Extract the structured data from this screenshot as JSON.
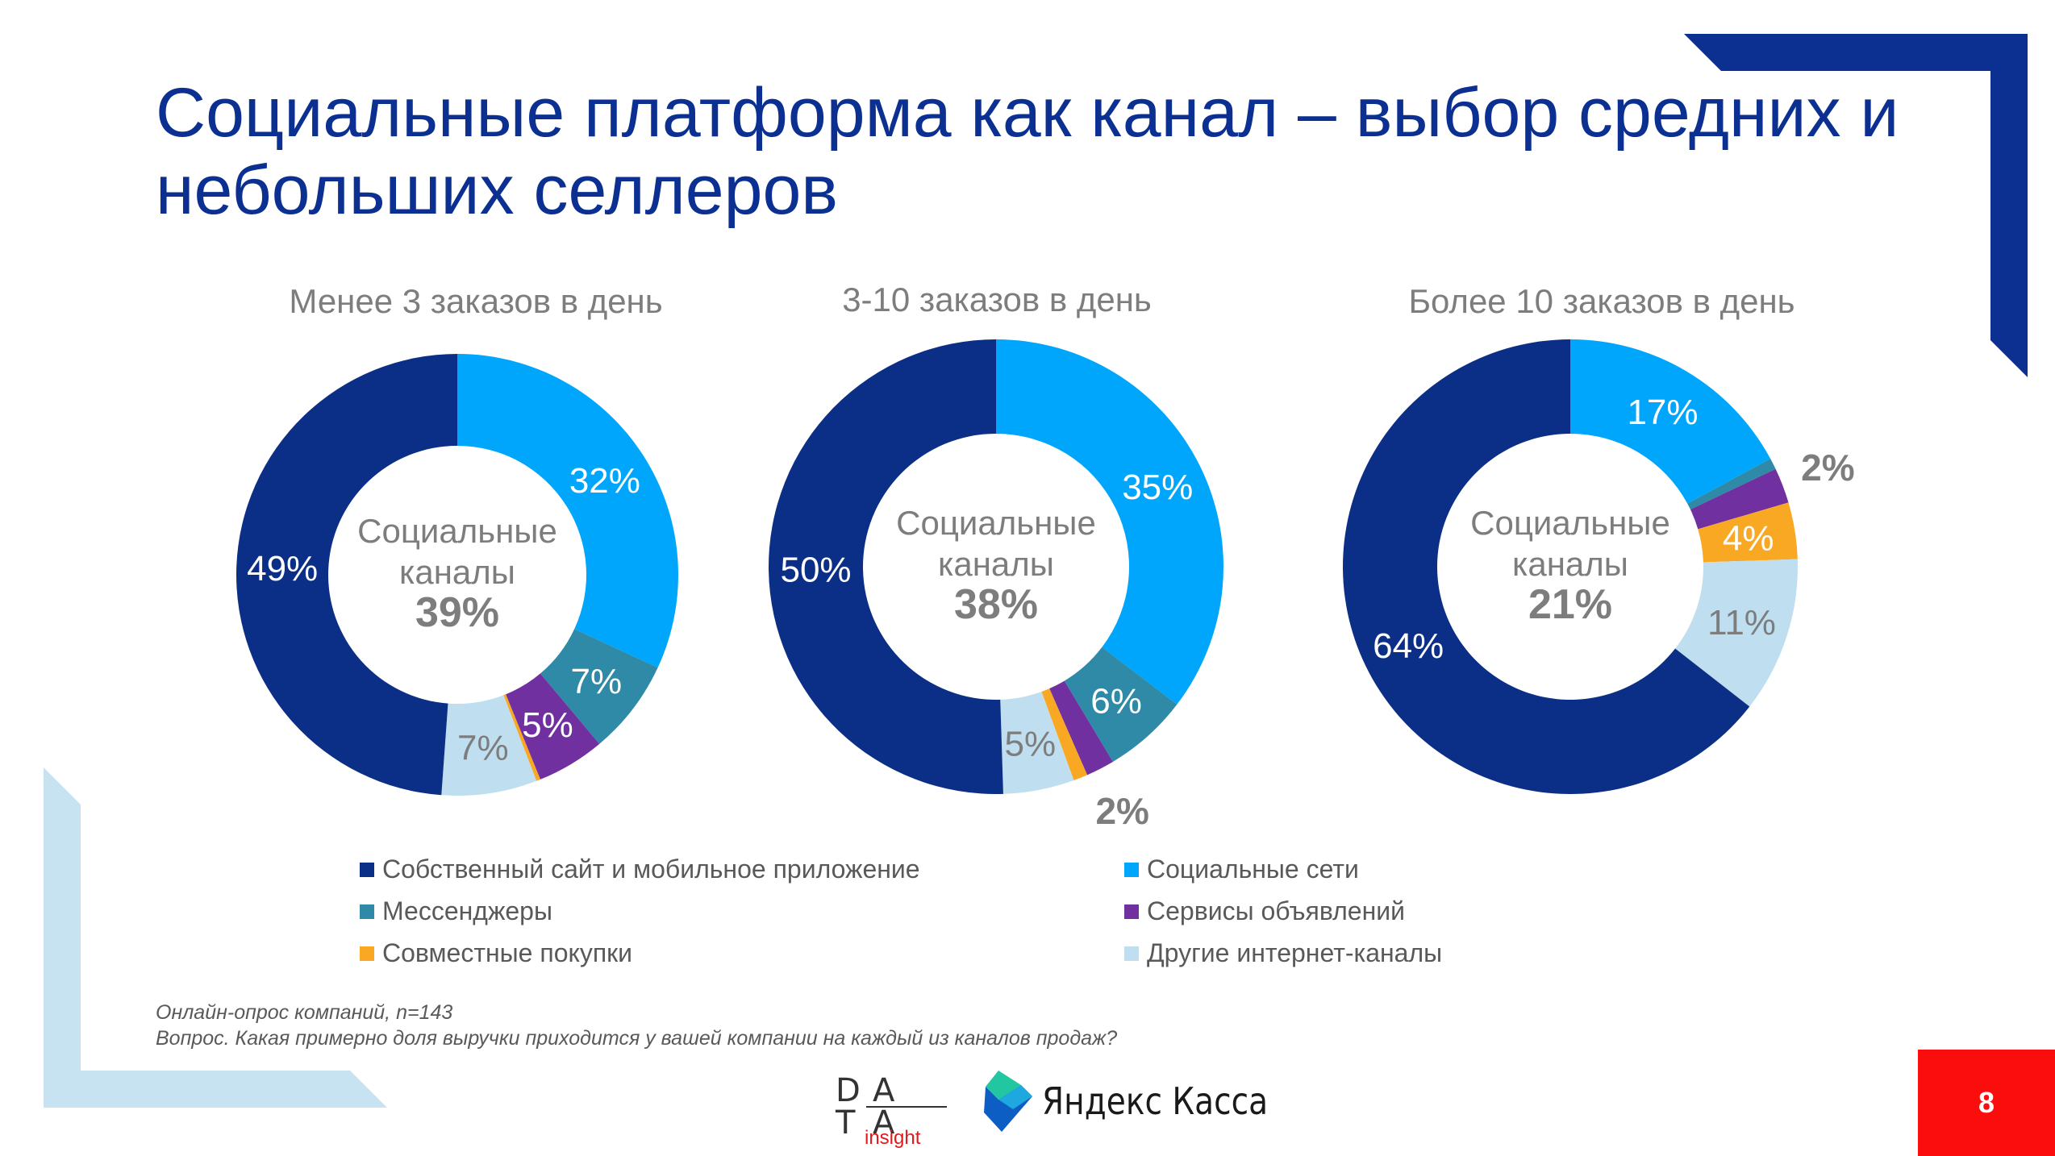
{
  "title": "Социальные платформа как канал – выбор средних и небольших селлеров",
  "colors": {
    "own_site": "#0b2f87",
    "social_networks": "#00a6fb",
    "messengers": "#2e8aa6",
    "classifieds": "#7030a0",
    "joint_purchases": "#f9a824",
    "other": "#bfdff0",
    "title": "#0b3091",
    "accent_red": "#fb0d0d"
  },
  "legend": [
    {
      "label": "Собственный сайт и мобильное приложение",
      "color": "#0b2f87"
    },
    {
      "label": "Социальные сети",
      "color": "#00a6fb"
    },
    {
      "label": "Мессенджеры",
      "color": "#2e8aa6"
    },
    {
      "label": "Сервисы объявлений",
      "color": "#7030a0"
    },
    {
      "label": "Совместные покупки",
      "color": "#f9a824"
    },
    {
      "label": "Другие интернет-каналы",
      "color": "#bfdff0"
    }
  ],
  "chart_data": [
    {
      "type": "pie",
      "title": "Менее 3 заказов в день",
      "center_label": "Социальные каналы",
      "center_value": "39%",
      "slices": [
        {
          "category": "Социальные сети",
          "value": 32,
          "label": "32%"
        },
        {
          "category": "Мессенджеры",
          "value": 7,
          "label": "7%"
        },
        {
          "category": "Сервисы объявлений",
          "value": 5,
          "label": "5%"
        },
        {
          "category": "Совместные покупки",
          "value": 0.3,
          "label": ""
        },
        {
          "category": "Другие интернет-каналы",
          "value": 7,
          "label": "7%"
        },
        {
          "category": "Собственный сайт и мобильное приложение",
          "value": 49,
          "label": "49%"
        }
      ]
    },
    {
      "type": "pie",
      "title": "3-10 заказов в день",
      "center_label": "Социальные каналы",
      "center_value": "38%",
      "slices": [
        {
          "category": "Социальные сети",
          "value": 35,
          "label": "35%"
        },
        {
          "category": "Мессенджеры",
          "value": 6,
          "label": "6%"
        },
        {
          "category": "Сервисы объявлений",
          "value": 2,
          "label": "2%"
        },
        {
          "category": "Совместные покупки",
          "value": 1,
          "label": ""
        },
        {
          "category": "Другие интернет-каналы",
          "value": 5,
          "label": "5%"
        },
        {
          "category": "Собственный сайт и мобильное приложение",
          "value": 50,
          "label": "50%"
        }
      ]
    },
    {
      "type": "pie",
      "title": "Более 10 заказов в день",
      "center_label": "Социальные каналы",
      "center_value": "21%",
      "slices": [
        {
          "category": "Социальные сети",
          "value": 17,
          "label": "17%"
        },
        {
          "category": "Мессенджеры",
          "value": 0.8,
          "label": ""
        },
        {
          "category": "Сервисы объявлений",
          "value": 2.5,
          "label": "2%"
        },
        {
          "category": "Совместные покупки",
          "value": 4,
          "label": "4%"
        },
        {
          "category": "Другие интернет-каналы",
          "value": 11,
          "label": "11%"
        },
        {
          "category": "Собственный сайт и мобильное приложение",
          "value": 64,
          "label": "64%"
        }
      ]
    }
  ],
  "source": {
    "line1": "Онлайн-опрос компаний, n=143",
    "line2": "Вопрос. Какая примерно доля выручки приходится у вашей компании на каждый из каналов продаж?"
  },
  "logos": {
    "data_insight_letters": [
      "D",
      "A",
      "T",
      "A"
    ],
    "data_insight_word": "insight",
    "yandex_kassa": "Яндекс Касса"
  },
  "page_number": "8"
}
